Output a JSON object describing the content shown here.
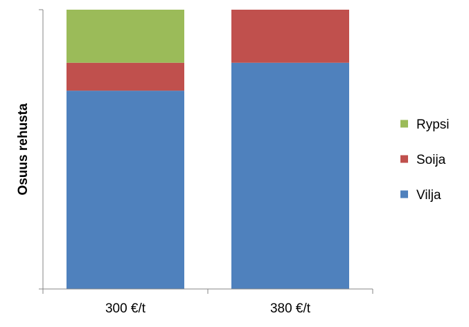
{
  "chart_data": {
    "type": "bar",
    "stacked": true,
    "categories": [
      "300 €/t",
      "380 €/t"
    ],
    "series": [
      {
        "name": "Vilja",
        "color": "#4f81bd",
        "values": [
          0.71,
          0.81
        ]
      },
      {
        "name": "Soija",
        "color": "#c0504d",
        "values": [
          0.1,
          0.19
        ]
      },
      {
        "name": "Rypsi",
        "color": "#9bbb59",
        "values": [
          0.19,
          0.0
        ]
      }
    ],
    "title": "",
    "xlabel": "",
    "ylabel": "Osuus rehusta",
    "ylim": [
      0,
      1
    ],
    "y_tick_labels_shown": false,
    "grid": false,
    "legend": {
      "placement": "right",
      "order": [
        "Rypsi",
        "Soija",
        "Vilja"
      ]
    }
  }
}
